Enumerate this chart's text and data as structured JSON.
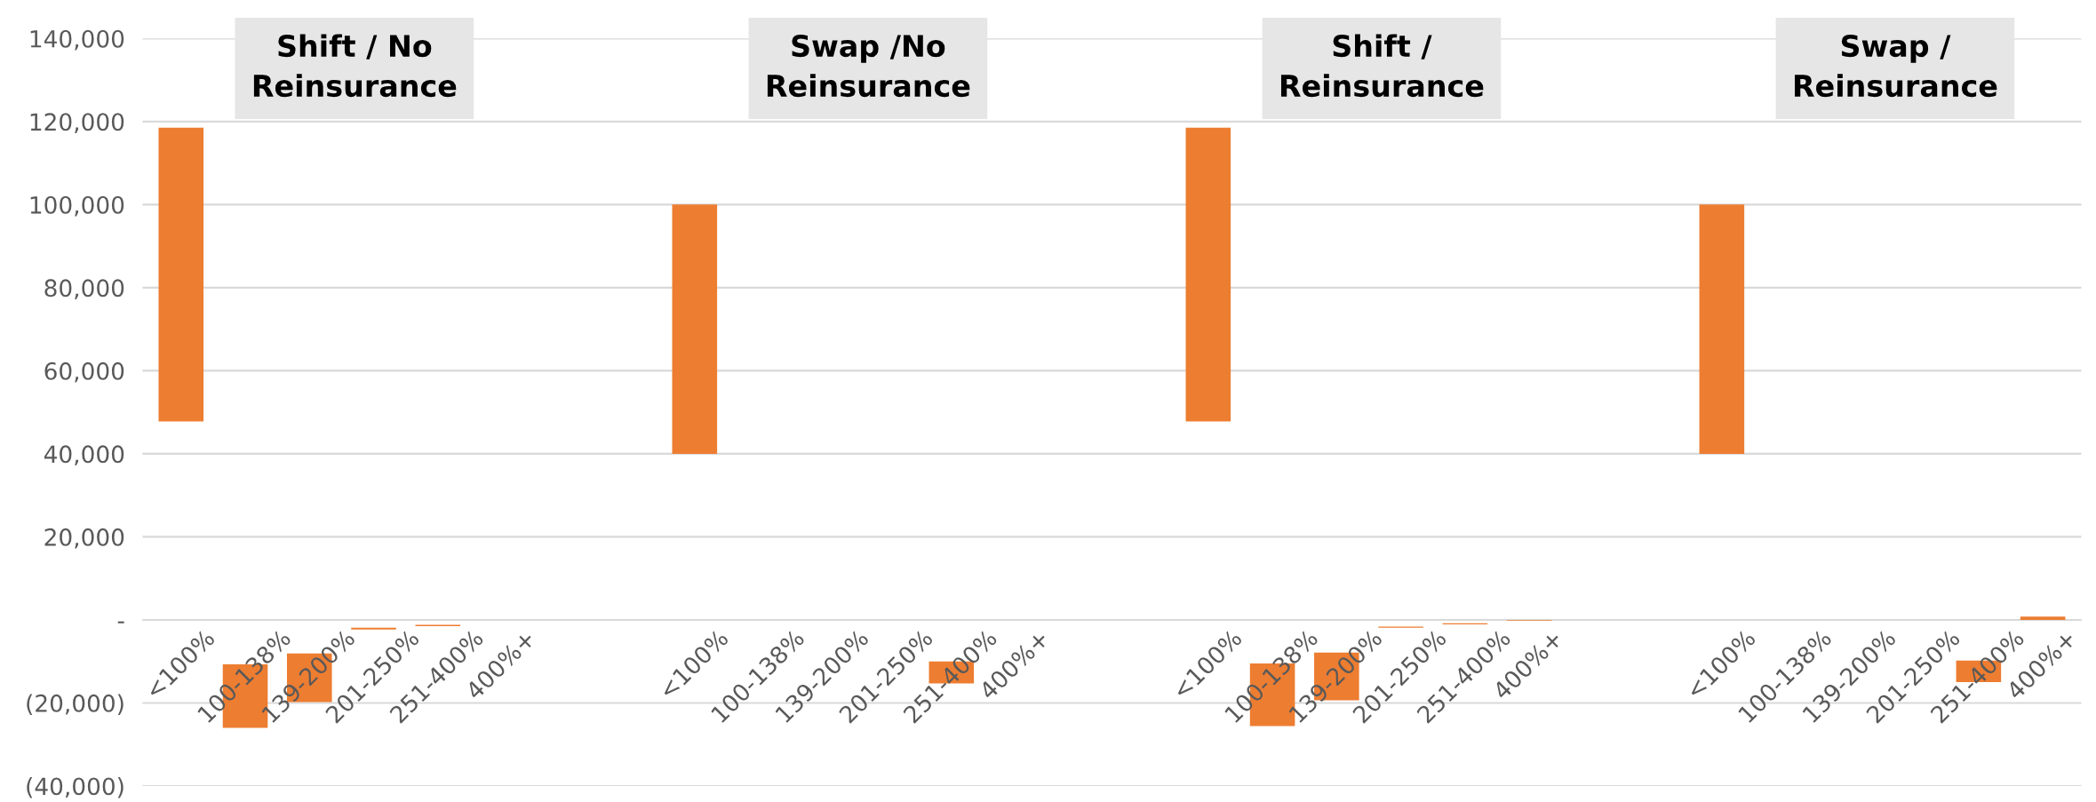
{
  "chart_data": {
    "type": "bar",
    "categories": [
      "<100%",
      "100-138%",
      "139-200%",
      "201-250%",
      "251-400%",
      "400%+",
      null,
      null,
      "<100%",
      "100-138%",
      "139-200%",
      "201-250%",
      "251-400%",
      "400%+",
      null,
      null,
      "<100%",
      "100-138%",
      "139-200%",
      "201-250%",
      "251-400%",
      "400%+",
      null,
      null,
      "<100%",
      "100-138%",
      "139-200%",
      "201-250%",
      "251-400%",
      "400%+"
    ],
    "values": [
      70700,
      15300,
      11700,
      400,
      300,
      null,
      null,
      null,
      60000,
      null,
      null,
      null,
      5300,
      null,
      null,
      null,
      70700,
      15100,
      11500,
      300,
      300,
      200,
      null,
      null,
      60000,
      null,
      null,
      null,
      5200,
      800
    ],
    "base": [
      47800,
      -26000,
      -19800,
      -2300,
      -1500,
      null,
      null,
      null,
      40000,
      null,
      null,
      null,
      -15300,
      null,
      null,
      null,
      47800,
      -25600,
      -19400,
      -1900,
      -1100,
      -200,
      null,
      null,
      40000,
      null,
      null,
      null,
      -15000,
      0
    ],
    "color": "#ed7d31",
    "ylim": [
      -40000,
      140000
    ],
    "yticks": [
      {
        "value": -40000,
        "label": "(40,000)"
      },
      {
        "value": -20000,
        "label": "(20,000)"
      },
      {
        "value": 0,
        "label": "-"
      },
      {
        "value": 20000,
        "label": "20,000"
      },
      {
        "value": 40000,
        "label": "40,000"
      },
      {
        "value": 60000,
        "label": "60,000"
      },
      {
        "value": 80000,
        "label": "80,000"
      },
      {
        "value": 100000,
        "label": "100,000"
      },
      {
        "value": 120000,
        "label": "120,000"
      },
      {
        "value": 140000,
        "label": "140,000"
      }
    ],
    "grid": "y",
    "annotations": [
      "Shift / No\nReinsurance",
      "Swap /No\nReinsurance",
      "Shift /\nReinsurance",
      "Swap /\nReinsurance"
    ]
  }
}
